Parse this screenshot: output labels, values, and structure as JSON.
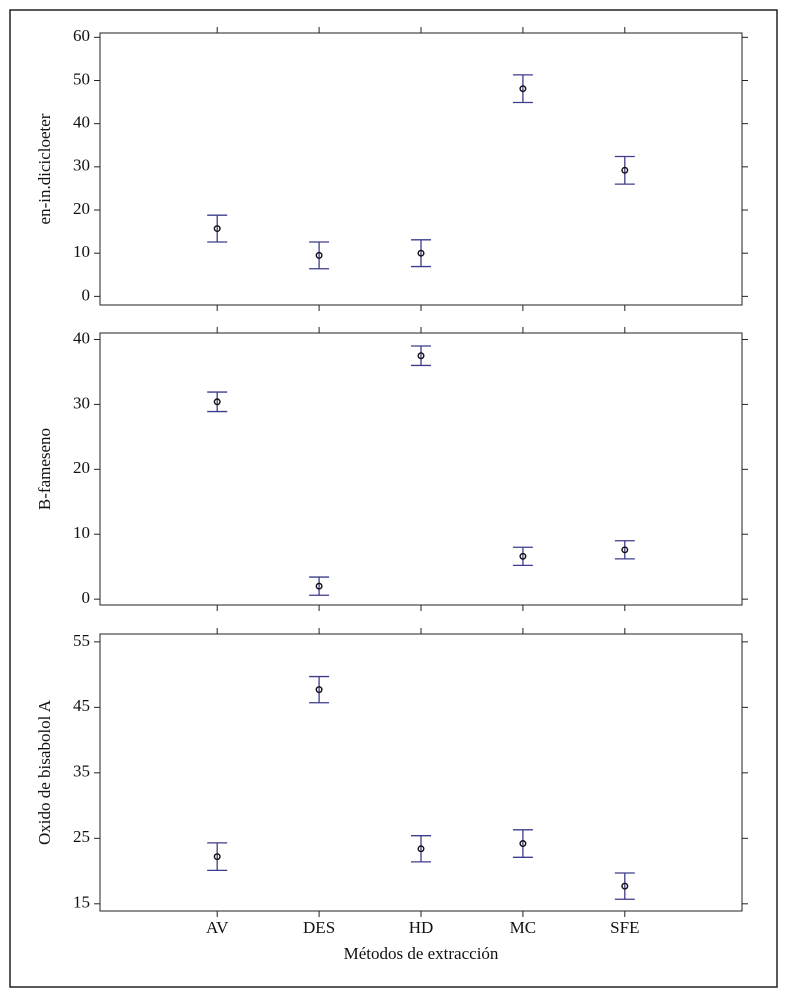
{
  "chart_data": [
    {
      "type": "errorbar",
      "ylabel": "en-in.dicicloeter",
      "values": [
        15.7,
        9.5,
        10,
        48.1,
        29.2
      ],
      "errors": [
        3.1,
        3.1,
        3.1,
        3.2,
        3.2
      ],
      "ylim": [
        -2,
        61
      ],
      "yticks": [
        0,
        10,
        20,
        30,
        40,
        50,
        60
      ],
      "color": "#3c3c8c"
    },
    {
      "type": "errorbar",
      "ylabel": "B-fameseno",
      "values": [
        30.4,
        2.0,
        37.5,
        6.6,
        7.6
      ],
      "errors": [
        1.5,
        1.4,
        1.5,
        1.4,
        1.4
      ],
      "ylim": [
        -0.9,
        41
      ],
      "yticks": [
        0,
        10,
        20,
        30,
        40
      ],
      "color": "#3c3c8c"
    },
    {
      "type": "errorbar",
      "ylabel": "Oxido de bisabolol A",
      "xlabel": "Métodos de extracción",
      "categories": [
        "AV",
        "DES",
        "HD",
        "MC",
        "SFE"
      ],
      "values": [
        22.2,
        47.7,
        23.4,
        24.2,
        17.7
      ],
      "errors": [
        2.1,
        2.0,
        2.0,
        2.1,
        2.0
      ],
      "ylim": [
        13.9,
        56.2
      ],
      "yticks": [
        15,
        25,
        35,
        45,
        55
      ],
      "color": "#3c3c8c"
    }
  ]
}
